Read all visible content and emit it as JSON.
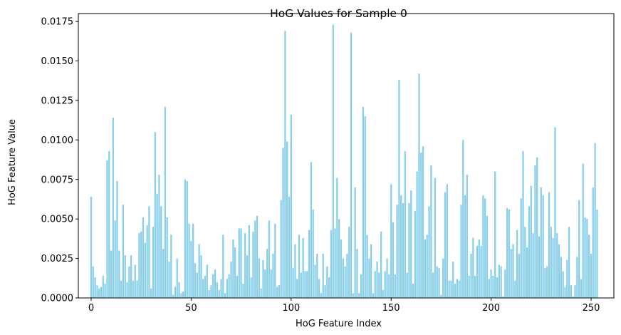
{
  "chart_data": {
    "type": "bar",
    "title": "HoG Values for Sample 0",
    "xlabel": "HoG Feature Index",
    "ylabel": "HoG Feature Value",
    "xlim": [
      -6.4,
      261.4
    ],
    "ylim": [
      0,
      0.018
    ],
    "xticks": [
      0,
      50,
      100,
      150,
      200,
      250
    ],
    "yticks": [
      0.0,
      0.0025,
      0.005,
      0.0075,
      0.01,
      0.0125,
      0.015,
      0.0175
    ],
    "ytick_labels": [
      "0.0000",
      "0.0025",
      "0.0050",
      "0.0075",
      "0.0100",
      "0.0125",
      "0.0150",
      "0.0175"
    ],
    "bar_color": "#87ceeb",
    "grid": false,
    "x": "0..255",
    "values": [
      0.0064,
      0.002,
      0.0013,
      0.0008,
      0.0006,
      0.0007,
      0.0014,
      0.0009,
      0.0087,
      0.0093,
      0.003,
      0.0114,
      0.0049,
      0.0074,
      0.003,
      0.0011,
      0.0059,
      0.0027,
      0.001,
      0.002,
      0.0027,
      0.0011,
      0.0021,
      0.0011,
      0.0041,
      0.0042,
      0.0051,
      0.0035,
      0.0046,
      0.0058,
      0.0006,
      0.0045,
      0.0105,
      0.0066,
      0.0078,
      0.0058,
      0.0031,
      0.0121,
      0.0051,
      0.0023,
      0.004,
      0.0002,
      0.0007,
      0.0025,
      0.001,
      0.0003,
      0.0004,
      0.0075,
      0.0074,
      0.0047,
      0.0036,
      0.0047,
      0.0022,
      0.0016,
      0.0034,
      0.0027,
      0.0012,
      0.0014,
      0.0021,
      0.0005,
      0.0008,
      0.0015,
      0.0018,
      0.001,
      0.0005,
      0.0012,
      0.004,
      0.0003,
      0.0012,
      0.0015,
      0.0023,
      0.0037,
      0.0032,
      0.0014,
      0.0044,
      0.0044,
      0.0009,
      0.0041,
      0.0027,
      0.0046,
      0.0013,
      0.0042,
      0.0049,
      0.0052,
      0.0025,
      0.0006,
      0.0024,
      0.0018,
      0.0031,
      0.0049,
      0.0018,
      0.0028,
      0.0047,
      0.0007,
      0.0008,
      0.0062,
      0.0095,
      0.0169,
      0.0099,
      0.0064,
      0.0116,
      0.0019,
      0.0034,
      0.0012,
      0.004,
      0.0016,
      0.0038,
      0.0017,
      0.0017,
      0.0043,
      0.0086,
      0.0056,
      0.0021,
      0.0028,
      0.0012,
      0.0003,
      0.0028,
      0.0008,
      0.002,
      0.0013,
      0.0043,
      0.0173,
      0.0044,
      0.0076,
      0.005,
      0.0037,
      0.0025,
      0.002,
      0.0028,
      0.0045,
      0.0168,
      0.0003,
      0.007,
      0.0031,
      0.0003,
      0.0015,
      0.0121,
      0.0115,
      0.004,
      0.0025,
      0.0034,
      0.0003,
      0.0017,
      0.0023,
      0.0016,
      0.0042,
      0.0005,
      0.0017,
      0.0025,
      0.0015,
      0.0072,
      0.0048,
      0.0015,
      0.0059,
      0.0138,
      0.0065,
      0.006,
      0.0093,
      0.0016,
      0.006,
      0.0068,
      0.0009,
      0.0055,
      0.008,
      0.0142,
      0.0092,
      0.0096,
      0.0037,
      0.004,
      0.0058,
      0.0084,
      0.0016,
      0.0076,
      0.002,
      0.0019,
      0.0002,
      0.0025,
      0.0067,
      0.0072,
      0.0011,
      0.0011,
      0.0023,
      0.0009,
      0.0012,
      0.0011,
      0.0059,
      0.01,
      0.0065,
      0.0078,
      0.0014,
      0.0028,
      0.0038,
      0.0014,
      0.0033,
      0.0037,
      0.0033,
      0.0065,
      0.0063,
      0.0052,
      0.0012,
      0.0018,
      0.0014,
      0.008,
      0.0013,
      0.0021,
      0.002,
      0.0001,
      0.0018,
      0.0057,
      0.0056,
      0.0031,
      0.0034,
      0.0011,
      0.0043,
      0.0028,
      0.0063,
      0.0093,
      0.0045,
      0.0032,
      0.0058,
      0.0071,
      0.0041,
      0.0084,
      0.0089,
      0.0039,
      0.007,
      0.0065,
      0.0019,
      0.002,
      0.0067,
      0.0045,
      0.0038,
      0.0108,
      0.0041,
      0.0034,
      0.0026,
      0.0017,
      0.0007,
      0.0024,
      0.0045,
      0.0008,
      0.0001,
      0.0008,
      0.0026,
      0.0062,
      0.0012,
      0.0085,
      0.0051,
      0.005,
      0.004,
      0.0028,
      0.007,
      0.0098,
      0.0056
    ]
  }
}
